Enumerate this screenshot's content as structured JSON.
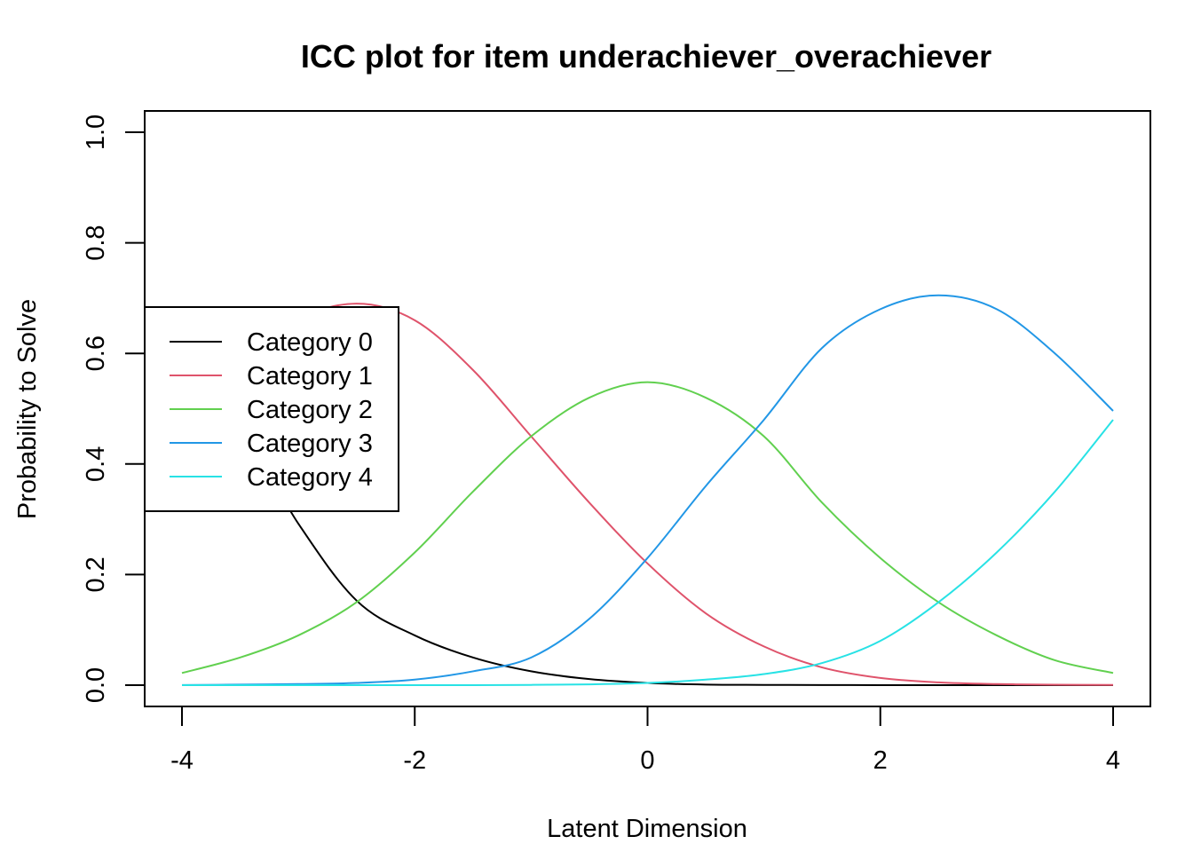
{
  "chart_data": {
    "type": "line",
    "title": "ICC plot for item underachiever_overachiever",
    "xlabel": "Latent Dimension",
    "ylabel": "Probability to Solve",
    "xlim": [
      -4,
      4
    ],
    "ylim": [
      0,
      1
    ],
    "x_ticks": [
      "-4",
      "-2",
      "0",
      "2",
      "4"
    ],
    "y_ticks": [
      "0.0",
      "0.2",
      "0.4",
      "0.6",
      "0.8",
      "1.0"
    ],
    "grid": false,
    "legend_position": "left",
    "x": [
      -4,
      -3.5,
      -3,
      -2.5,
      -2,
      -1.5,
      -1,
      -0.5,
      0,
      0.5,
      1,
      1.5,
      2,
      2.5,
      3,
      3.5,
      4
    ],
    "series": [
      {
        "name": "Category 0",
        "color": "#000000",
        "values": [
          0.53,
          0.465,
          0.292,
          0.153,
          0.09,
          0.05,
          0.025,
          0.011,
          0.004,
          0.001,
          0.0005,
          0.0002,
          0.0001,
          0.0,
          0.0,
          0.0,
          0.0
        ]
      },
      {
        "name": "Category 1",
        "color": "#DF536B",
        "values": [
          0.448,
          0.57,
          0.66,
          0.69,
          0.66,
          0.57,
          0.45,
          0.33,
          0.22,
          0.13,
          0.07,
          0.032,
          0.013,
          0.005,
          0.002,
          0.0008,
          0.0003
        ]
      },
      {
        "name": "Category 2",
        "color": "#61D04F",
        "values": [
          0.022,
          0.05,
          0.09,
          0.15,
          0.24,
          0.35,
          0.45,
          0.52,
          0.548,
          0.52,
          0.45,
          0.33,
          0.23,
          0.15,
          0.09,
          0.045,
          0.022
        ]
      },
      {
        "name": "Category 3",
        "color": "#2297E6",
        "values": [
          0.0002,
          0.001,
          0.002,
          0.004,
          0.01,
          0.025,
          0.05,
          0.12,
          0.23,
          0.36,
          0.48,
          0.61,
          0.68,
          0.705,
          0.68,
          0.6,
          0.496
        ]
      },
      {
        "name": "Category 4",
        "color": "#28E2E5",
        "values": [
          0.0,
          0.0,
          0.0,
          0.0,
          0.0,
          0.0,
          0.0005,
          0.0015,
          0.004,
          0.01,
          0.02,
          0.04,
          0.08,
          0.15,
          0.24,
          0.35,
          0.48
        ]
      }
    ]
  }
}
